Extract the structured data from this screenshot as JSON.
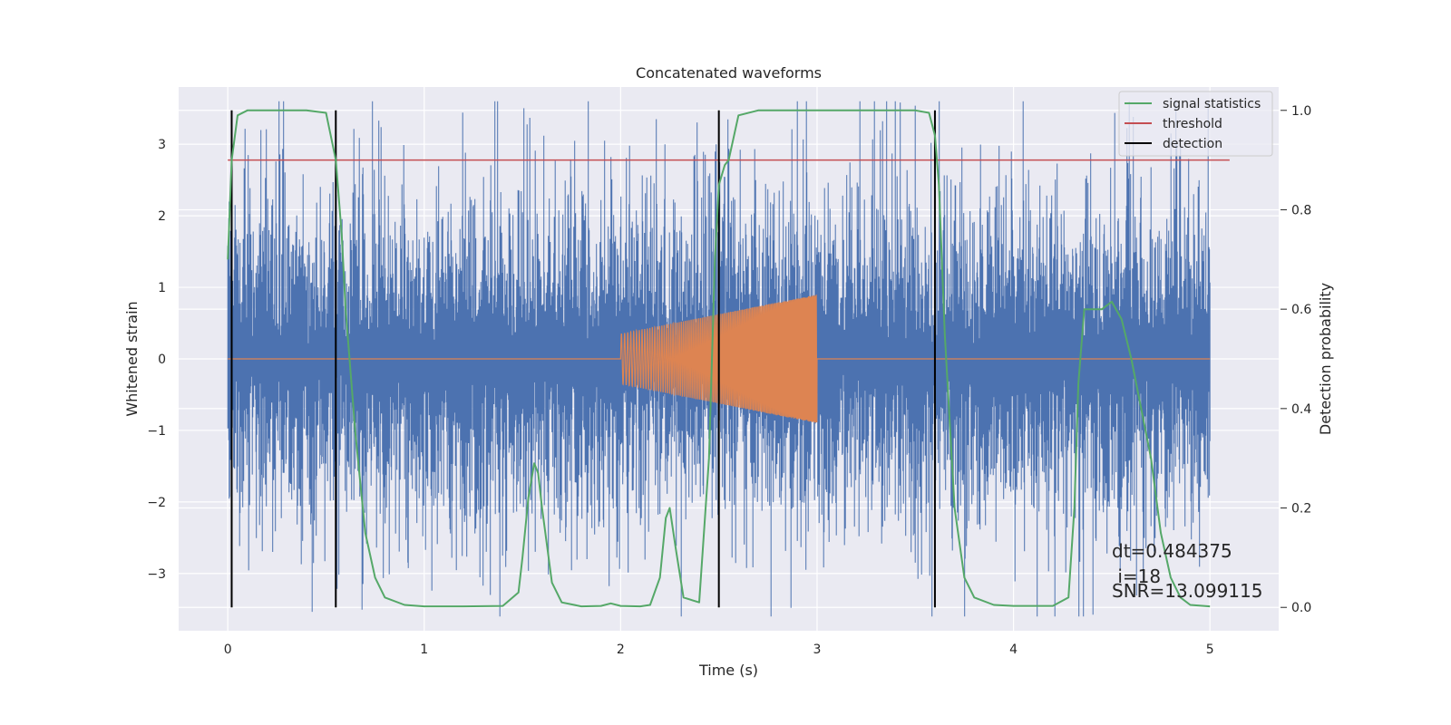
{
  "chart_data": {
    "type": "line",
    "title": "Concatenated waveforms",
    "xlabel": "Time (s)",
    "ylabel_left": "Whitened strain",
    "ylabel_right": "Detection probability",
    "xlim": [
      -0.25,
      5.35
    ],
    "ylim_left": [
      -3.8,
      3.8
    ],
    "ylim_right": [
      -0.047,
      1.047
    ],
    "x_ticks": [
      0,
      1,
      2,
      3,
      4,
      5
    ],
    "x_tick_labels": [
      "0",
      "1",
      "2",
      "3",
      "4",
      "5"
    ],
    "y_left_ticks": [
      -3,
      -2,
      -1,
      0,
      1,
      2,
      3
    ],
    "y_left_tick_labels": [
      "−3",
      "−2",
      "−1",
      "0",
      "1",
      "2",
      "3"
    ],
    "y_right_ticks": [
      0.0,
      0.2,
      0.4,
      0.6,
      0.8,
      1.0
    ],
    "y_right_tick_labels": [
      "0.0",
      "0.2",
      "0.4",
      "0.6",
      "0.8",
      "1.0"
    ],
    "grid": true,
    "legend_position": "top-right",
    "legend": [
      {
        "label": "signal statistics",
        "color": "#55a868"
      },
      {
        "label": "threshold",
        "color": "#c44e52"
      },
      {
        "label": "detection",
        "color": "#000000"
      }
    ],
    "strain_noise": {
      "color": "#4c72b0",
      "x_range": [
        0,
        5
      ],
      "approx_amplitude": 3.6
    },
    "chirp_signal": {
      "color": "#dd8452",
      "x_range": [
        2,
        3
      ],
      "amplitude_start": 0.35,
      "amplitude_end": 0.9,
      "baseline": 0
    },
    "signal_statistics": {
      "color": "#55a868",
      "x": [
        0.0,
        0.02,
        0.05,
        0.1,
        0.2,
        0.4,
        0.5,
        0.55,
        0.58,
        0.6,
        0.65,
        0.7,
        0.75,
        0.8,
        0.9,
        1.0,
        1.2,
        1.4,
        1.48,
        1.5,
        1.53,
        1.56,
        1.58,
        1.6,
        1.65,
        1.7,
        1.8,
        1.9,
        1.95,
        2.0,
        2.1,
        2.15,
        2.2,
        2.23,
        2.25,
        2.28,
        2.32,
        2.4,
        2.45,
        2.48,
        2.5,
        2.53,
        2.55,
        2.6,
        2.7,
        2.8,
        3.0,
        3.3,
        3.5,
        3.57,
        3.6,
        3.62,
        3.65,
        3.7,
        3.75,
        3.8,
        3.9,
        4.0,
        4.2,
        4.28,
        4.31,
        4.33,
        4.36,
        4.4,
        4.45,
        4.5,
        4.55,
        4.6,
        4.7,
        4.75,
        4.8,
        4.85,
        4.9,
        5.0
      ],
      "y": [
        0.7,
        0.9,
        0.99,
        1.0,
        1.0,
        1.0,
        0.995,
        0.9,
        0.75,
        0.6,
        0.35,
        0.15,
        0.06,
        0.02,
        0.005,
        0.002,
        0.002,
        0.003,
        0.03,
        0.1,
        0.22,
        0.29,
        0.27,
        0.2,
        0.05,
        0.01,
        0.002,
        0.003,
        0.008,
        0.003,
        0.002,
        0.005,
        0.06,
        0.18,
        0.2,
        0.12,
        0.02,
        0.01,
        0.3,
        0.7,
        0.85,
        0.89,
        0.9,
        0.99,
        1.0,
        1.0,
        1.0,
        1.0,
        1.0,
        0.995,
        0.95,
        0.85,
        0.55,
        0.2,
        0.06,
        0.02,
        0.005,
        0.003,
        0.003,
        0.02,
        0.2,
        0.45,
        0.6,
        0.6,
        0.6,
        0.615,
        0.58,
        0.5,
        0.3,
        0.15,
        0.06,
        0.02,
        0.005,
        0.002
      ]
    },
    "threshold": {
      "y": 0.9,
      "x_range": [
        0,
        5.1
      ]
    },
    "detections": [
      0.02,
      0.55,
      2.5,
      3.6
    ],
    "annotation_lines": [
      "dt=0.484375",
      " i=18",
      "SNR=13.099115"
    ]
  }
}
